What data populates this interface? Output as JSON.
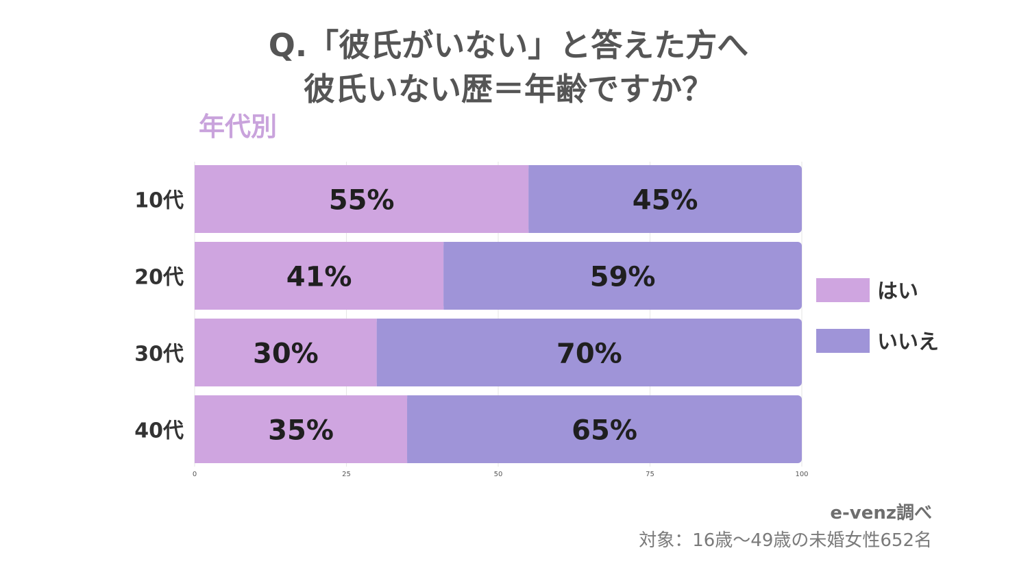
{
  "title_line1": "Q.「彼氏がいない」と答えた方へ",
  "title_line2": "彼氏いない歴＝年齢ですか？",
  "subtitle": "年代別",
  "source": "e-venz調べ",
  "note": "対象：16歳〜49歳の未婚女性652名",
  "colors": {
    "yes": "#cfa5e0",
    "no": "#9f94d8",
    "grid": "#e6e6e6",
    "label": "#333333",
    "value": "#1f1f1f"
  },
  "chart_data": {
    "type": "bar",
    "orientation": "horizontal",
    "stacked": true,
    "categories": [
      "10代",
      "20代",
      "30代",
      "40代"
    ],
    "series": [
      {
        "name": "はい",
        "values": [
          55,
          41,
          30,
          35
        ],
        "labels": [
          "55%",
          "41%",
          "30%",
          "35%"
        ]
      },
      {
        "name": "いいえ",
        "values": [
          45,
          59,
          70,
          65
        ],
        "labels": [
          "45%",
          "59%",
          "70%",
          "65%"
        ]
      }
    ],
    "xlim": [
      0,
      100
    ],
    "xticks": [
      0,
      25,
      50,
      75,
      100
    ],
    "xlabel": "",
    "ylabel": "",
    "grid": true,
    "legend": "right"
  }
}
